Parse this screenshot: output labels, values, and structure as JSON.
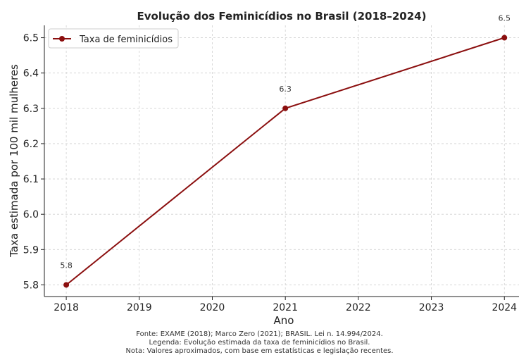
{
  "chart_data": {
    "type": "line",
    "title": "Evolução dos Feminicídios no Brasil (2018–2024)",
    "xlabel": "Ano",
    "ylabel": "Taxa estimada por 100 mil mulheres",
    "x": [
      2018,
      2021,
      2024
    ],
    "series": [
      {
        "name": "Taxa de feminicídios",
        "values": [
          5.8,
          6.3,
          6.5
        ],
        "color": "#8b0f0f"
      }
    ],
    "data_labels": [
      "5.8",
      "6.3",
      "6.5"
    ],
    "xticks": [
      "2018",
      "2019",
      "2020",
      "2021",
      "2022",
      "2023",
      "2024"
    ],
    "yticks": [
      "5.8",
      "5.9",
      "6.0",
      "6.1",
      "6.2",
      "6.3",
      "6.4",
      "6.5"
    ],
    "xlim": [
      2017.7,
      2024.2
    ],
    "ylim": [
      5.767,
      6.535
    ],
    "grid": true,
    "grid_style": "dashed",
    "legend_position": "top-left"
  },
  "captions": {
    "source": "Fonte: EXAME (2018); Marco Zero (2021); BRASIL. Lei n. 14.994/2024.",
    "legend_note": "Legenda: Evolução estimada da taxa de feminicídios no Brasil.",
    "note": "Nota: Valores aproximados, com base em estatísticas e legislação recentes."
  }
}
